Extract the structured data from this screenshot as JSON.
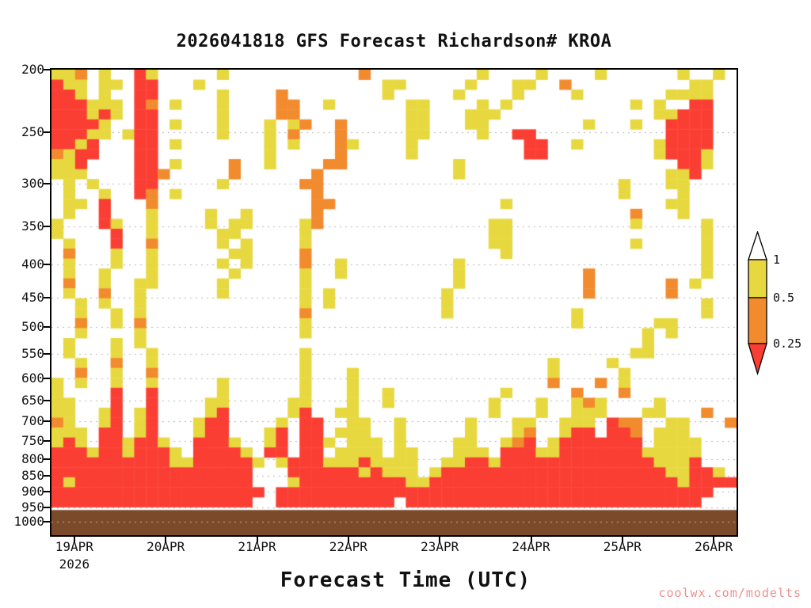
{
  "title": "2026041818 GFS Forecast Richardson# KROA",
  "watermark": "coolwx.com/modelts",
  "axes": {
    "y_ticks": [
      "200",
      "250",
      "300",
      "350",
      "400",
      "450",
      "500",
      "550",
      "600",
      "650",
      "700",
      "750",
      "800",
      "850",
      "900",
      "950",
      "1000"
    ],
    "x_ticks": [
      "19APR",
      "20APR",
      "21APR",
      "22APR",
      "23APR",
      "24APR",
      "25APR",
      "26APR"
    ],
    "x_year_label": "2026",
    "x_title": "Forecast Time (UTC)"
  },
  "colorbar": {
    "labels": [
      "1",
      "0.5",
      "0.25"
    ],
    "segment_colors": [
      "#ffffff",
      "#e8d840",
      "#f28a2e",
      "#fb3e33"
    ]
  },
  "colors": {
    "yellow": "#e8d840",
    "orange": "#f28a2e",
    "red": "#fb3e33",
    "ground": "#7a4a2b",
    "gridline": "#b3b3b3",
    "gridline_on_ground": "#c8b29c",
    "watermark": "#ef8e8e",
    "axis": "#000000"
  },
  "chart_data": {
    "type": "heatmap",
    "title": "2026041818 GFS Forecast Richardson# KROA",
    "xlabel": "Forecast Time (UTC)",
    "ylabel": "",
    "y_scale": "log",
    "y_tick_labels": [
      200,
      250,
      300,
      350,
      400,
      450,
      500,
      550,
      600,
      650,
      700,
      750,
      800,
      850,
      900,
      950,
      1000
    ],
    "y_range": [
      200,
      1050
    ],
    "x_tick_labels": [
      "19APR",
      "20APR",
      "21APR",
      "22APR",
      "23APR",
      "24APR",
      "25APR",
      "26APR"
    ],
    "x_year": "2026",
    "value_bins": [
      {
        "label": "> 1",
        "color": "#ffffff"
      },
      {
        "label": "0.5 - 1",
        "color": "#e8d840"
      },
      {
        "label": "0.25 - 0.5",
        "color": "#f28a2e"
      },
      {
        "label": "< 0.25",
        "color": "#fb3e33"
      }
    ],
    "ground_band": {
      "from_hPa": 960,
      "to_hPa": 1050,
      "color": "#7a4a2b"
    },
    "grid": {
      "cols": 58,
      "rows": 44,
      "p_top": 200,
      "p_bottom": 950,
      "encoding": {
        ".": "none",
        "y": "0.5-1",
        "o": "0.25-0.5",
        "r": "<0.25"
      }
    },
    "cells": [
      "yyo.y..ry.....y...........o.........y....y....y......y..y",
      "ryy.yy.rr...y...............yy.....y...yy..o..........yy",
      "rry.y..rr.....y....o........y.....y....y....y.......yyyy",
      "rrryyy.ro.y...y....oo..y......yy....y.y..........y.y..rr",
      "rrryry.rr.....y....oo.........yy...yyy.............yyrrr",
      "rrrry..rr.y...y...y.yo..o.....yy...yy........y...y..rrrr",
      "rrryy.yrr.....y...y.o...o.....yy....y..rr...........rrrr",
      "rryr...rr.y.......y.y...oy....y.........rr..y......yrrrr",
      "oyrr...rr.........y.....o.....y.........rr.........yrrry",
      "yyr....rr.y....o..y....oo.........y..................rry.",
      "yyy....rro.....o......o...........y.................yyr..",
      ".y.y...rr.....y......oo.........................y...yy..",
      ".y..y..ro.y...........o.........................y....y..",
      ".yy.r...o.............oo..............y.............yy..",
      ".y..r...y....y..y.....o..........................o...y..",
      "y...ry..y....y.yy....yo..............yy..........y.....y",
      "y....r..y.....yy.....y...............yy................y",
      ".y...r..o.....y.y....y...............yy..........y.....y",
      ".o...y..y......yy....o................y................y",
      ".y...y..y.....y.y....o..y.........y....................y",
      ".y..y...y......y.....y..y.........y..........o.........y",
      ".o..y..yy.....y......y............y..........o......o.y.",
      ".y..o..y......y......y.y.........y...........o......o...",
      "..y.y..y.............y.y.........y.....................y",
      "..y..y.y.............o...........y..........y..........y",
      "..o..y.o.............y......................y......yy...",
      "..y....y.............y............................y.y...",
      ".y...y.y..........................................y....",
      ".y...y..y............y...........................yy....",
      "..y..o..y............y....................y....y........",
      "..o..y..o............y...y................y.....y.......",
      "y.y..y..y.....y......y...y................o...o.y.......",
      "y....r..r.....y......y...y..y.........y.....o...o.......",
      "yy...r..r....yy.....yy...y..y........y...y..yoy....y....",
      "yy..yr.yr....yr.....yr..yy...........y...y..yyy...yy...o",
      "oy..yr.yr...yrr....y.rr..yy..y.....y...yy..yyy.roo..yy...o",
      "yyy.rr.yr...yrr...yr.rr.yyy..y.....y...yo..yrr.rro.yyy..",
      "yry.rryrry..rrry..yr.rry.yyy.y....yy..yor.yrrrrrrr.yyyy.",
      "rrryrryrrry.rrrry.rr.rr.yyyy.yy...yyy.rrryyrrrrrrryyyyy.",
      "rrrrrrrrrryyrrrrry.yrrryyyryyyy..yyrryrrrrrrrrrrrrryyyr.",
      "rrrrrrrrrrrrrrrrr...rrrrrryryyy.yrrrrrrrrrrrrrrrrrrryyrry.",
      "ryrrrrrrrrrrrrrrr...yrrrrrrrrryyrrrrrrrrrrrrrrrrrrrrryrrrr.",
      "rrrrrrrrrrrrrrrrrr.rrrrrrrrrrrrrrrrrrrrrrrrrrrrrrrrrrrrr",
      "rrrrrrrrrrrrrrrrr..rrrrrrrrrr.rrrrrrrrrrrrrrrrrrrrrrrrr"
    ]
  }
}
